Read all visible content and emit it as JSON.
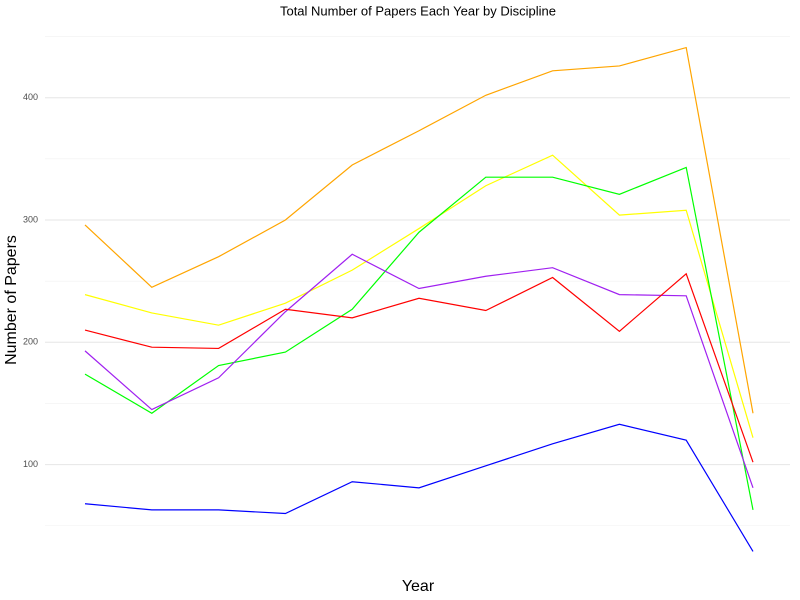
{
  "chart_data": {
    "type": "line",
    "title": "Total Number of Papers Each Year by Discipline",
    "xlabel": "Year",
    "ylabel": "Number of Papers",
    "categories": [
      null,
      null,
      null,
      null,
      null,
      null,
      null,
      null,
      null,
      null,
      null
    ],
    "series": [
      {
        "color": "#FFA500",
        "values": [
          296,
          245,
          270,
          300,
          345,
          373,
          402,
          422,
          426,
          441,
          142
        ]
      },
      {
        "color": "#FFFF00",
        "values": [
          239,
          224,
          214,
          232,
          259,
          293,
          328,
          353,
          304,
          308,
          122
        ]
      },
      {
        "color": "#00FF00",
        "values": [
          174,
          142,
          181,
          192,
          227,
          290,
          335,
          335,
          321,
          343,
          63
        ]
      },
      {
        "color": "#A020F0",
        "values": [
          193,
          145,
          171,
          225,
          272,
          244,
          254,
          261,
          239,
          238,
          81
        ]
      },
      {
        "color": "#FF0000",
        "values": [
          210,
          196,
          195,
          227,
          220,
          236,
          226,
          253,
          209,
          256,
          102
        ]
      },
      {
        "color": "#0000FF",
        "values": [
          68,
          63,
          63,
          60,
          86,
          81,
          99,
          117,
          133,
          120,
          29
        ]
      }
    ],
    "ylim": [
      22,
      457
    ],
    "yticks": [
      100,
      200,
      300,
      400
    ],
    "minor_gridlines": [
      50,
      150,
      250,
      350,
      450
    ],
    "grid": true
  }
}
